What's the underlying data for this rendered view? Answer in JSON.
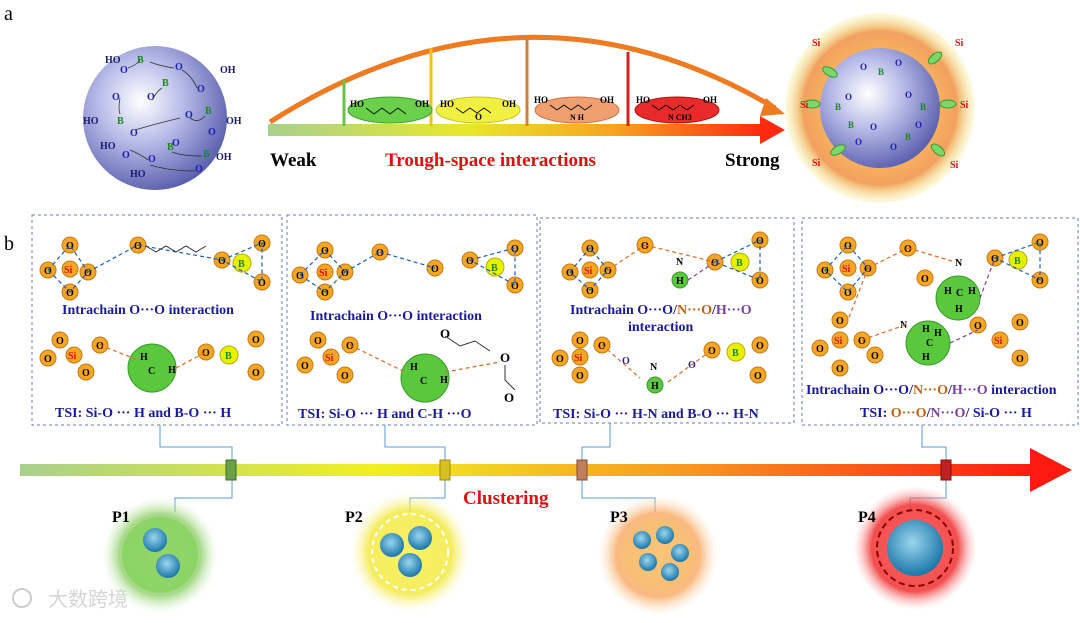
{
  "panel_labels": {
    "a": "a",
    "b": "b"
  },
  "top": {
    "weak": "Weak",
    "strong": "Strong",
    "title": "Trough-space interactions",
    "molecules": [
      {
        "left": "HO",
        "right": "OH",
        "extra": ""
      },
      {
        "left": "HO",
        "right": "OH",
        "extra": "O"
      },
      {
        "left": "HO",
        "right": "OH",
        "extra": "N H"
      },
      {
        "left": "HO",
        "right": "OH",
        "extra": "N CH3"
      }
    ]
  },
  "panels": [
    {
      "caption": "Intrachain O···O interaction",
      "tsi": "TSI:  Si-O ··· H and B-O ··· H"
    },
    {
      "caption": "Intrachain O···O interaction",
      "tsi": "TSI:  Si-O ··· H and C-H ···O"
    },
    {
      "caption_1": "Intrachain O···O",
      "caption_slash1": "/",
      "caption_n": "N···O",
      "caption_slash2": "/",
      "caption_h": "H···O",
      "caption_2": "interaction",
      "tsi": "TSI:  Si-O ··· H-N and B-O ··· H-N"
    },
    {
      "caption_1": "Intrachain O···O",
      "caption_slash1": "/",
      "caption_n": "N···O",
      "caption_slash2": "/",
      "caption_h": "H···O",
      "caption_2": " interaction",
      "tsi_1": "TSI: ",
      "tsi_o": "O···O",
      "tsi_slash": "/",
      "tsi_n": "N···O",
      "tsi_3": "/ Si-O ··· H"
    }
  ],
  "timeline": {
    "label": "Clustering",
    "points": [
      "P1",
      "P2",
      "P3",
      "P4"
    ]
  },
  "atoms": {
    "O": "O",
    "Si": "Si",
    "B": "B",
    "N": "N",
    "H": "H",
    "C": "C",
    "OH": "OH",
    "HO": "HO"
  },
  "watermark": "大数跨境",
  "colors": {
    "orange_atom": "#f5a623",
    "boron": "#e8f000",
    "green": "#5ac83c",
    "dashed_blue": "#1a5fb4",
    "dashed_orange": "#e06a20",
    "dashed_purple": "#7a3fa0",
    "text_blue": "#1a1aa0",
    "red": "#e01010"
  }
}
